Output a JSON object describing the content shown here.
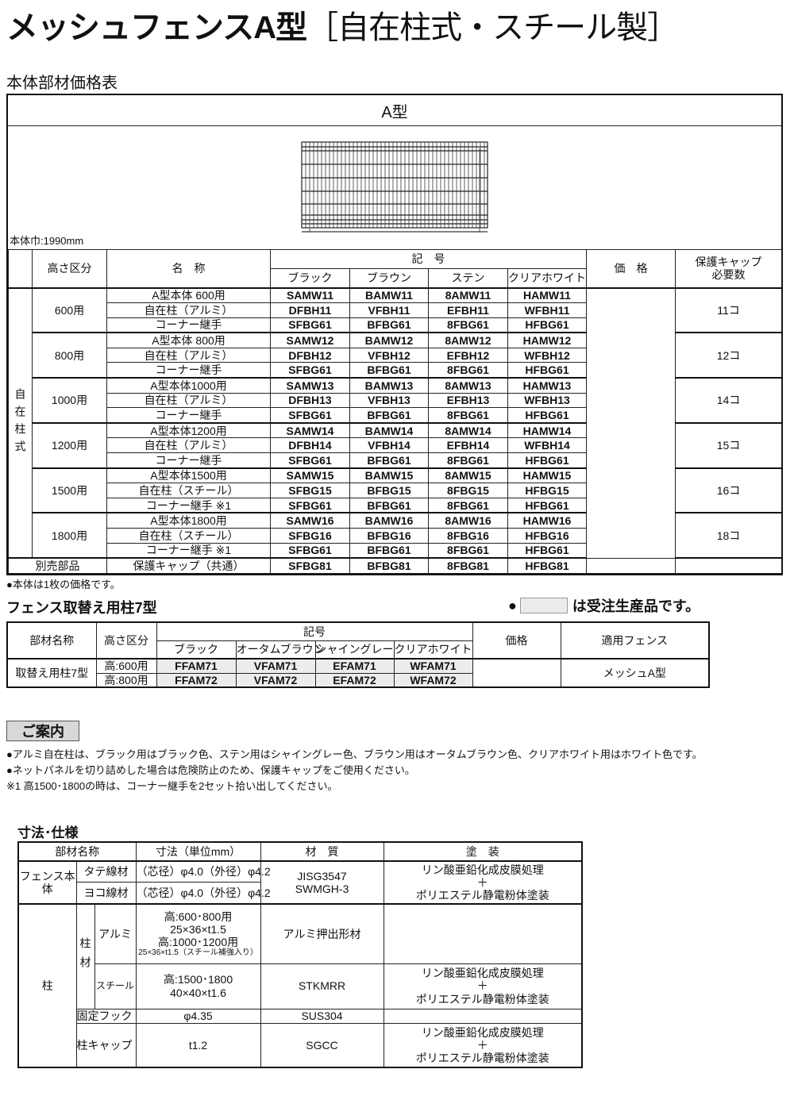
{
  "header": {
    "title_main": "メッシュフェンスA型",
    "title_sub": "［自在柱式・スチール製］"
  },
  "main_table": {
    "section_title": "本体部材価格表",
    "type_label": "A型",
    "width_note": "本体巾:1990mm",
    "group_label": "自在柱式",
    "headers": {
      "height": "高さ区分",
      "name": "名　称",
      "code": "記　号",
      "colors": [
        "ブラック",
        "ブラウン",
        "ステン",
        "クリアホワイト"
      ],
      "price": "価　格",
      "cap_line1": "保護キャップ",
      "cap_line2": "必要数"
    },
    "groups": [
      {
        "height": "600用",
        "cap": "11コ",
        "items": [
          {
            "name": "A型本体 600用",
            "codes": [
              "SAMW11",
              "BAMW11",
              "8AMW11",
              "HAMW11"
            ]
          },
          {
            "name": "自在柱（アルミ）",
            "codes": [
              "DFBH11",
              "VFBH11",
              "EFBH11",
              "WFBH11"
            ]
          },
          {
            "name": "コーナー継手",
            "codes": [
              "SFBG61",
              "BFBG61",
              "8FBG61",
              "HFBG61"
            ]
          }
        ]
      },
      {
        "height": "800用",
        "cap": "12コ",
        "items": [
          {
            "name": "A型本体 800用",
            "codes": [
              "SAMW12",
              "BAMW12",
              "8AMW12",
              "HAMW12"
            ]
          },
          {
            "name": "自在柱（アルミ）",
            "codes": [
              "DFBH12",
              "VFBH12",
              "EFBH12",
              "WFBH12"
            ]
          },
          {
            "name": "コーナー継手",
            "codes": [
              "SFBG61",
              "BFBG61",
              "8FBG61",
              "HFBG61"
            ]
          }
        ]
      },
      {
        "height": "1000用",
        "cap": "14コ",
        "items": [
          {
            "name": "A型本体1000用",
            "codes": [
              "SAMW13",
              "BAMW13",
              "8AMW13",
              "HAMW13"
            ]
          },
          {
            "name": "自在柱（アルミ）",
            "codes": [
              "DFBH13",
              "VFBH13",
              "EFBH13",
              "WFBH13"
            ]
          },
          {
            "name": "コーナー継手",
            "codes": [
              "SFBG61",
              "BFBG61",
              "8FBG61",
              "HFBG61"
            ]
          }
        ]
      },
      {
        "height": "1200用",
        "cap": "15コ",
        "items": [
          {
            "name": "A型本体1200用",
            "codes": [
              "SAMW14",
              "BAMW14",
              "8AMW14",
              "HAMW14"
            ]
          },
          {
            "name": "自在柱（アルミ）",
            "codes": [
              "DFBH14",
              "VFBH14",
              "EFBH14",
              "WFBH14"
            ]
          },
          {
            "name": "コーナー継手",
            "codes": [
              "SFBG61",
              "BFBG61",
              "8FBG61",
              "HFBG61"
            ]
          }
        ]
      },
      {
        "height": "1500用",
        "cap": "16コ",
        "items": [
          {
            "name": "A型本体1500用",
            "codes": [
              "SAMW15",
              "BAMW15",
              "8AMW15",
              "HAMW15"
            ]
          },
          {
            "name": "自在柱（スチール）",
            "codes": [
              "SFBG15",
              "BFBG15",
              "8FBG15",
              "HFBG15"
            ]
          },
          {
            "name": "コーナー継手 ※1",
            "codes": [
              "SFBG61",
              "BFBG61",
              "8FBG61",
              "HFBG61"
            ]
          }
        ]
      },
      {
        "height": "1800用",
        "cap": "18コ",
        "items": [
          {
            "name": "A型本体1800用",
            "codes": [
              "SAMW16",
              "BAMW16",
              "8AMW16",
              "HAMW16"
            ]
          },
          {
            "name": "自在柱（スチール）",
            "codes": [
              "SFBG16",
              "BFBG16",
              "8FBG16",
              "HFBG16"
            ]
          },
          {
            "name": "コーナー継手 ※1",
            "codes": [
              "SFBG61",
              "BFBG61",
              "8FBG61",
              "HFBG61"
            ]
          }
        ]
      }
    ],
    "extra_row": {
      "label": "別売部品",
      "name": "保護キャップ（共通）",
      "codes": [
        "SFBG81",
        "BFBG81",
        "8FBG81",
        "HFBG81"
      ]
    },
    "note": "●本体は1枚の価格です。"
  },
  "post_table": {
    "section_title": "フェンス取替え用柱7型",
    "legend_text": "は受注生産品です。",
    "headers": {
      "part": "部材名称",
      "height": "高さ区分",
      "code": "記号",
      "colors": [
        "ブラック",
        "オータムブラウン",
        "シャイングレー",
        "クリアホワイト"
      ],
      "price": "価格",
      "fence": "適用フェンス"
    },
    "part_name": "取替え用柱7型",
    "rows": [
      {
        "height": "高:600用",
        "codes": [
          "FFAM71",
          "VFAM71",
          "EFAM71",
          "WFAM71"
        ]
      },
      {
        "height": "高:800用",
        "codes": [
          "FFAM72",
          "VFAM72",
          "EFAM72",
          "WFAM72"
        ]
      }
    ],
    "fence": "メッシュA型",
    "colors": {
      "made_to_order": "#ececec"
    }
  },
  "guide": {
    "label": "ご案内",
    "notes": [
      "●アルミ自在柱は、ブラック用はブラック色、ステン用はシャイングレー色、ブラウン用はオータムブラウン色、クリアホワイト用はホワイト色です。",
      "●ネットパネルを切り詰めした場合は危険防止のため、保護キャップをご使用ください。",
      "※1  高1500･1800の時は、コーナー継手を2セット拾い出してください。"
    ]
  },
  "spec_table": {
    "section_title": "寸法･仕様",
    "headers": {
      "part": "部材名称",
      "size": "寸法（単位mm）",
      "material": "材　質",
      "coating": "塗　装"
    },
    "fence_body": "フェンス本体",
    "vertical_wire": "タテ線材",
    "horizontal_wire": "ヨコ線材",
    "wire_size": "（芯径）φ4.0（外径）φ4.2",
    "wire_material_1": "JISG3547",
    "wire_material_2": "SWMGH-3",
    "coating_1": "リン酸亜鉛化成皮膜処理",
    "coating_plus": "＋",
    "coating_2": "ポリエステル静電粉体塗装",
    "post": "柱",
    "post_material": "柱材",
    "alu": "アルミ",
    "alu_size_1": "高:600･800用",
    "alu_size_2": "25×36×t1.5",
    "alu_size_3": "高:1000･1200用",
    "alu_size_4": "25×36×t1.5（スチール補強入り）",
    "alu_material": "アルミ押出形材",
    "steel": "スチール",
    "steel_size_1": "高:1500･1800",
    "steel_size_2": "40×40×t1.6",
    "steel_material": "STKMRR",
    "hook": "固定フック",
    "hook_size": "φ4.35",
    "hook_material": "SUS304",
    "cap": "柱キャップ",
    "cap_size": "t1.2",
    "cap_material": "SGCC"
  }
}
